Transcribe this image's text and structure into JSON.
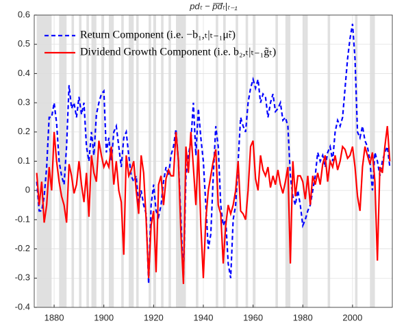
{
  "chart_data": {
    "type": "line",
    "title": "pdₜ − p̅d̅ₜ|ₜ₋₁",
    "x": [
      1873,
      1874,
      1875,
      1876,
      1877,
      1878,
      1879,
      1880,
      1881,
      1882,
      1883,
      1884,
      1885,
      1886,
      1887,
      1888,
      1889,
      1890,
      1891,
      1892,
      1893,
      1894,
      1895,
      1896,
      1897,
      1898,
      1899,
      1900,
      1901,
      1902,
      1903,
      1904,
      1905,
      1906,
      1907,
      1908,
      1909,
      1910,
      1911,
      1912,
      1913,
      1914,
      1915,
      1916,
      1917,
      1918,
      1919,
      1920,
      1921,
      1922,
      1923,
      1924,
      1925,
      1926,
      1927,
      1928,
      1929,
      1930,
      1931,
      1932,
      1933,
      1934,
      1935,
      1936,
      1937,
      1938,
      1939,
      1940,
      1941,
      1942,
      1943,
      1944,
      1945,
      1946,
      1947,
      1948,
      1949,
      1950,
      1951,
      1952,
      1953,
      1954,
      1955,
      1956,
      1957,
      1958,
      1959,
      1960,
      1961,
      1962,
      1963,
      1964,
      1965,
      1966,
      1967,
      1968,
      1969,
      1970,
      1971,
      1972,
      1973,
      1974,
      1975,
      1976,
      1977,
      1978,
      1979,
      1980,
      1981,
      1982,
      1983,
      1984,
      1985,
      1986,
      1987,
      1988,
      1989,
      1990,
      1991,
      1992,
      1993,
      1994,
      1995,
      1996,
      1997,
      1998,
      1999,
      2000,
      2001,
      2002,
      2003,
      2004,
      2005,
      2006,
      2007,
      2008,
      2009,
      2010,
      2011,
      2012,
      2013,
      2014,
      2015
    ],
    "series": [
      {
        "name": "Return Component (i.e. −b₁,ₜ|ₜ₋₁μ̃ₜ)",
        "color": "#0000ff",
        "dash": true,
        "values": [
          0.03,
          -0.07,
          -0.07,
          -0.02,
          0.08,
          0.25,
          0.25,
          0.3,
          0.23,
          0.1,
          0.05,
          0.02,
          0.15,
          0.36,
          0.28,
          0.3,
          0.25,
          0.32,
          0.26,
          0.3,
          0.15,
          0.1,
          0.2,
          0.12,
          0.26,
          0.3,
          0.33,
          0.34,
          0.13,
          0.18,
          0.1,
          0.2,
          0.22,
          0.15,
          0.08,
          0.18,
          0.2,
          0.12,
          0.05,
          0.03,
          0.05,
          -0.05,
          0.0,
          -0.05,
          -0.08,
          -0.32,
          -0.05,
          0.02,
          -0.07,
          -0.09,
          -0.05,
          0.03,
          0.08,
          0.05,
          0.12,
          0.15,
          0.21,
          0.1,
          -0.1,
          -0.3,
          0.05,
          0.12,
          0.17,
          0.3,
          0.12,
          0.28,
          0.18,
          0.1,
          -0.05,
          -0.2,
          -0.15,
          0.05,
          0.22,
          0.15,
          -0.05,
          -0.12,
          -0.1,
          -0.25,
          -0.3,
          -0.1,
          -0.05,
          0.1,
          0.25,
          0.22,
          0.2,
          0.3,
          0.35,
          0.38,
          0.35,
          0.38,
          0.3,
          0.33,
          0.32,
          0.25,
          0.3,
          0.33,
          0.27,
          0.28,
          0.3,
          0.24,
          0.25,
          0.22,
          0.05,
          -0.02,
          -0.05,
          0.0,
          -0.05,
          -0.12,
          -0.1,
          -0.07,
          -0.05,
          0.0,
          0.05,
          0.13,
          0.1,
          0.12,
          0.08,
          0.13,
          0.15,
          0.1,
          0.2,
          0.24,
          0.22,
          0.25,
          0.35,
          0.45,
          0.52,
          0.57,
          0.45,
          0.2,
          0.18,
          0.22,
          0.17,
          0.15,
          0.1,
          0.0,
          0.13,
          0.1,
          0.05,
          0.1,
          0.13,
          0.15,
          0.08
        ]
      },
      {
        "name": "Dividend Growth Component (i.e. b₂,ₜ|ₜ₋₁g̃ₜ)",
        "color": "#ff0000",
        "dash": false,
        "values": [
          0.06,
          -0.05,
          0.03,
          -0.11,
          -0.05,
          0.08,
          0.0,
          0.2,
          0.1,
          0.03,
          -0.02,
          -0.05,
          -0.11,
          0.09,
          0.05,
          -0.01,
          0.02,
          0.1,
          0.02,
          -0.04,
          0.06,
          -0.09,
          0.12,
          0.06,
          0.03,
          0.17,
          0.12,
          0.08,
          0.1,
          0.08,
          0.15,
          0.02,
          0.1,
          0.0,
          -0.04,
          -0.22,
          0.12,
          0.05,
          0.07,
          0.1,
          0.0,
          -0.08,
          0.12,
          0.06,
          -0.1,
          -0.3,
          -0.12,
          -0.07,
          -0.28,
          0.02,
          0.05,
          -0.05,
          0.04,
          0.07,
          0.05,
          0.05,
          0.2,
          0.1,
          -0.15,
          -0.32,
          0.15,
          0.06,
          0.2,
          0.08,
          -0.05,
          0.14,
          -0.12,
          -0.3,
          -0.1,
          0.0,
          0.05,
          0.1,
          0.14,
          -0.05,
          -0.08,
          -0.25,
          -0.12,
          -0.05,
          -0.08,
          -0.05,
          0.0,
          0.1,
          -0.07,
          -0.08,
          -0.1,
          0.0,
          0.15,
          0.17,
          0.04,
          0.0,
          0.12,
          0.07,
          0.05,
          0.08,
          0.01,
          0.05,
          0.02,
          0.07,
          0.02,
          -0.01,
          0.03,
          0.08,
          -0.25,
          0.1,
          -0.02,
          0.05,
          0.05,
          0.03,
          -0.03,
          0.05,
          -0.05,
          0.05,
          0.02,
          0.06,
          0.02,
          0.09,
          0.12,
          0.03,
          0.1,
          0.08,
          0.12,
          0.07,
          0.1,
          0.15,
          0.14,
          0.11,
          0.12,
          0.15,
          0.08,
          -0.02,
          -0.07,
          0.08,
          0.15,
          0.12,
          0.09,
          0.13,
          0.03,
          -0.24,
          0.08,
          0.06,
          0.15,
          0.22,
          0.1
        ]
      }
    ],
    "shaded_periods": [
      [
        1873,
        1879
      ],
      [
        1882,
        1885
      ],
      [
        1887,
        1888
      ],
      [
        1890,
        1891
      ],
      [
        1893,
        1894
      ],
      [
        1895,
        1897
      ],
      [
        1899,
        1900
      ],
      [
        1902,
        1904
      ],
      [
        1907,
        1908
      ],
      [
        1910,
        1912
      ],
      [
        1913,
        1914
      ],
      [
        1918,
        1919
      ],
      [
        1920,
        1921
      ],
      [
        1923,
        1924
      ],
      [
        1926,
        1927
      ],
      [
        1929,
        1933
      ],
      [
        1937,
        1938
      ],
      [
        1945,
        1946
      ],
      [
        1948,
        1949
      ],
      [
        1953,
        1954
      ],
      [
        1957,
        1958
      ],
      [
        1960,
        1961
      ],
      [
        1969,
        1970
      ],
      [
        1973,
        1975
      ],
      [
        1980,
        1981
      ],
      [
        1981,
        1982
      ],
      [
        1990,
        1991
      ],
      [
        2001,
        2002
      ],
      [
        2007,
        2009
      ]
    ],
    "xlim": [
      1872,
      2016
    ],
    "ylim": [
      -0.4,
      0.6
    ],
    "xticks": [
      1880,
      1900,
      1920,
      1940,
      1960,
      1980,
      2000
    ],
    "yticks": [
      -0.4,
      -0.3,
      -0.2,
      -0.1,
      0,
      0.1,
      0.2,
      0.3,
      0.4,
      0.5,
      0.6
    ],
    "grid": true,
    "legend": "upper left"
  }
}
